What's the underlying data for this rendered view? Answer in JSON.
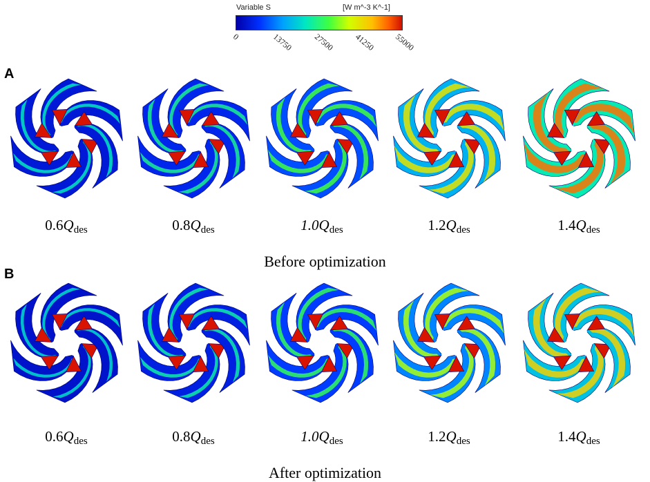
{
  "legend": {
    "title": "Variable S",
    "units": "[W m^-3 K^-1]",
    "ticks": [
      "0",
      "13750",
      "27500",
      "41250",
      "55000"
    ]
  },
  "panels": [
    {
      "label": "A",
      "caption": "Before optimization",
      "items": [
        {
          "coef": "0.6",
          "q": "Q",
          "sub": "des",
          "level": 0.12
        },
        {
          "coef": "0.8",
          "q": "Q",
          "sub": "des",
          "level": 0.2
        },
        {
          "coef": "1.0",
          "q": "Q",
          "sub": "des",
          "level": 0.35
        },
        {
          "coef": "1.2",
          "q": "Q",
          "sub": "des",
          "level": 0.65
        },
        {
          "coef": "1.4",
          "q": "Q",
          "sub": "des",
          "level": 0.92
        }
      ]
    },
    {
      "label": "B",
      "caption": "After optimization",
      "items": [
        {
          "coef": "0.6",
          "q": "Q",
          "sub": "des",
          "level": 0.08
        },
        {
          "coef": "0.8",
          "q": "Q",
          "sub": "des",
          "level": 0.16
        },
        {
          "coef": "1.0",
          "q": "Q",
          "sub": "des",
          "level": 0.3
        },
        {
          "coef": "1.2",
          "q": "Q",
          "sub": "des",
          "level": 0.5
        },
        {
          "coef": "1.4",
          "q": "Q",
          "sub": "des",
          "level": 0.72
        }
      ]
    }
  ]
}
